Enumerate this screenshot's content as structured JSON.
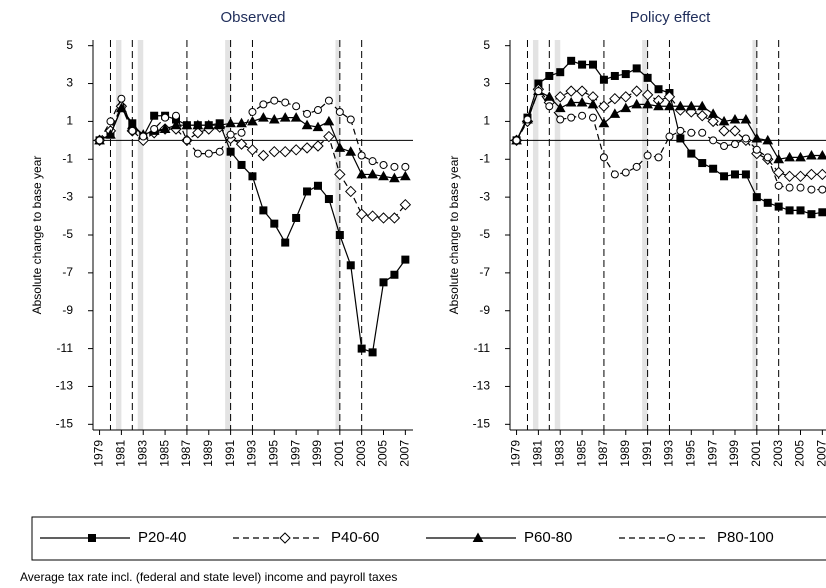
{
  "chart_data": [
    {
      "type": "line",
      "title": "Observed",
      "y_label": "Absolute change to base year",
      "x": [
        1979,
        1980,
        1981,
        1982,
        1983,
        1984,
        1985,
        1986,
        1987,
        1988,
        1989,
        1990,
        1991,
        1992,
        1993,
        1994,
        1995,
        1996,
        1997,
        1998,
        1999,
        2000,
        2001,
        2002,
        2003,
        2004,
        2005,
        2006,
        2007
      ],
      "xlim": [
        1978.4,
        2007.7
      ],
      "xticks": [
        1979,
        1981,
        1983,
        1985,
        1987,
        1989,
        1991,
        1993,
        1995,
        1997,
        1999,
        2001,
        2003,
        2005,
        2007
      ],
      "ylim": [
        -15.3,
        5.3
      ],
      "yticks": [
        5,
        3,
        1,
        -1,
        -3,
        -5,
        -7,
        -9,
        -11,
        -13,
        -15
      ],
      "hline": 0,
      "vlines": [
        1980,
        1982,
        1987,
        1991,
        1993,
        2001,
        2003
      ],
      "shaded": [
        [
          1980.5,
          1981
        ],
        [
          1982.5,
          1983
        ],
        [
          1990.5,
          1991
        ],
        [
          2000.6,
          2001
        ]
      ],
      "series": [
        {
          "name": "P20-40",
          "color": "#000000",
          "marker": "square",
          "filled": true,
          "dashed": false,
          "values": [
            0,
            0.3,
            1.7,
            0.9,
            0.2,
            1.3,
            1.3,
            1.1,
            0.8,
            0.8,
            0.8,
            0.9,
            -0.6,
            -1.3,
            -1.9,
            -3.7,
            -4.4,
            -5.4,
            -4.1,
            -2.7,
            -2.4,
            -3.1,
            -5,
            -6.6,
            -11,
            -11.2,
            -7.5,
            -7.1,
            -6.3
          ]
        },
        {
          "name": "P40-60",
          "color": "#000000",
          "marker": "diamond",
          "filled": false,
          "dashed": true,
          "values": [
            0,
            0.5,
            1.8,
            0.5,
            0,
            0.4,
            0.6,
            0.6,
            0,
            0.4,
            0.6,
            0.7,
            0.1,
            -0.2,
            -0.5,
            -0.8,
            -0.6,
            -0.6,
            -0.5,
            -0.4,
            -0.3,
            0.2,
            -1.8,
            -2.7,
            -3.9,
            -4,
            -4.1,
            -4.1,
            -3.4
          ]
        },
        {
          "name": "P60-80",
          "color": "#000000",
          "marker": "triangle",
          "filled": true,
          "dashed": false,
          "values": [
            0,
            0.3,
            1.7,
            0.8,
            0.3,
            0.5,
            0.6,
            0.8,
            0.8,
            0.8,
            0.8,
            0.8,
            0.9,
            0.9,
            1,
            1.2,
            1.1,
            1.2,
            1.2,
            0.8,
            0.7,
            1,
            -0.4,
            -0.6,
            -1.8,
            -1.8,
            -1.9,
            -2,
            -1.9
          ]
        },
        {
          "name": "P80-100",
          "color": "#000000",
          "marker": "circle",
          "filled": false,
          "dashed": true,
          "values": [
            0,
            1,
            2.2,
            0.5,
            0.2,
            0.6,
            1.2,
            1.3,
            0,
            -0.7,
            -0.7,
            -0.6,
            0.3,
            0.4,
            1.5,
            1.9,
            2.1,
            2,
            1.8,
            1.4,
            1.6,
            2.1,
            1.5,
            1.1,
            -0.8,
            -1.1,
            -1.3,
            -1.4,
            -1.4
          ]
        }
      ]
    },
    {
      "type": "line",
      "title": "Policy effect",
      "y_label": "Absolute change to base year",
      "x": [
        1979,
        1980,
        1981,
        1982,
        1983,
        1984,
        1985,
        1986,
        1987,
        1988,
        1989,
        1990,
        1991,
        1992,
        1993,
        1994,
        1995,
        1996,
        1997,
        1998,
        1999,
        2000,
        2001,
        2002,
        2003,
        2004,
        2005,
        2006,
        2007
      ],
      "xlim": [
        1978.4,
        2007.7
      ],
      "xticks": [
        1979,
        1981,
        1983,
        1985,
        1987,
        1989,
        1991,
        1993,
        1995,
        1997,
        1999,
        2001,
        2003,
        2005,
        2007
      ],
      "ylim": [
        -15.3,
        5.3
      ],
      "yticks": [
        5,
        3,
        1,
        -1,
        -3,
        -5,
        -7,
        -9,
        -11,
        -13,
        -15
      ],
      "hline": 0,
      "vlines": [
        1980,
        1982,
        1987,
        1991,
        1993,
        2001,
        2003
      ],
      "shaded": [
        [
          1980.5,
          1981
        ],
        [
          1982.5,
          1983
        ],
        [
          1990.5,
          1991
        ],
        [
          2000.6,
          2001
        ]
      ],
      "series": [
        {
          "color": "#000000",
          "marker": "square",
          "filled": true,
          "dashed": false,
          "values": [
            0,
            1.2,
            3,
            3.4,
            3.6,
            4.2,
            4,
            4,
            3.2,
            3.4,
            3.5,
            3.8,
            3.3,
            2.7,
            2.5,
            0.1,
            -0.7,
            -1.2,
            -1.5,
            -1.9,
            -1.8,
            -1.8,
            -3,
            -3.3,
            -3.5,
            -3.7,
            -3.7,
            -3.9,
            -3.8
          ]
        },
        {
          "color": "#000000",
          "marker": "diamond",
          "filled": false,
          "dashed": true,
          "values": [
            0,
            1,
            2.7,
            2,
            2.3,
            2.6,
            2.6,
            2.3,
            1.8,
            2.2,
            2.3,
            2.6,
            2.4,
            2.1,
            2.3,
            1.6,
            1.5,
            1.3,
            1,
            0.5,
            0.5,
            0,
            -0.7,
            -1,
            -1.7,
            -1.9,
            -1.9,
            -1.8,
            -1.8
          ]
        },
        {
          "color": "#000000",
          "marker": "triangle",
          "filled": true,
          "dashed": false,
          "values": [
            0,
            1.1,
            2.6,
            2.3,
            1.7,
            2,
            2,
            1.9,
            0.9,
            1.4,
            1.7,
            1.9,
            1.9,
            1.8,
            1.8,
            1.8,
            1.8,
            1.8,
            1.4,
            1,
            1.1,
            1.1,
            0.1,
            0,
            -1,
            -0.9,
            -0.9,
            -0.8,
            -0.8
          ]
        },
        {
          "color": "#000000",
          "marker": "circle",
          "filled": false,
          "dashed": true,
          "values": [
            0,
            1.1,
            2.6,
            1.8,
            1.1,
            1.2,
            1.3,
            1.2,
            -0.9,
            -1.8,
            -1.7,
            -1.4,
            -0.8,
            -0.9,
            0.2,
            0.5,
            0.4,
            0.4,
            0,
            -0.3,
            -0.2,
            0.1,
            -0.5,
            -0.9,
            -2.4,
            -2.5,
            -2.5,
            -2.6,
            -2.6
          ]
        }
      ]
    }
  ],
  "footnote": "Average tax rate incl. (federal and state level) income and payroll taxes"
}
